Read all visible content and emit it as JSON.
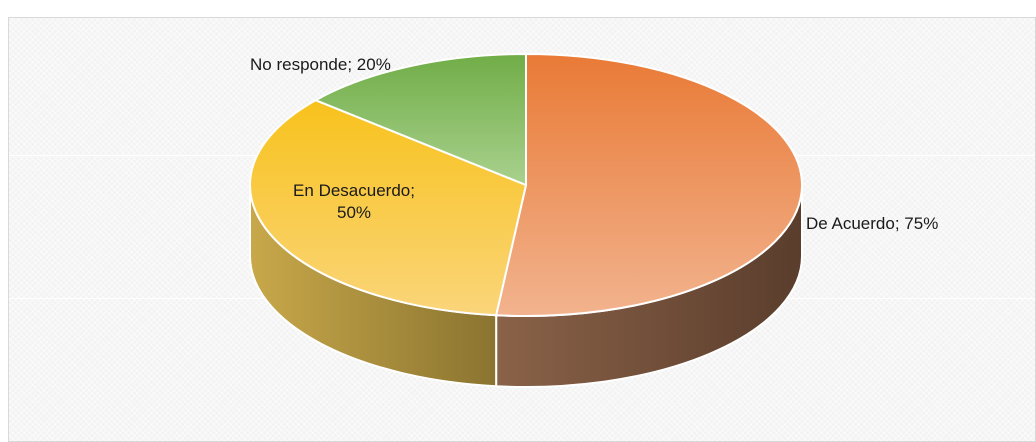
{
  "chart_data": {
    "type": "pie",
    "style": "3d",
    "slices": [
      {
        "label": "De Acuerdo",
        "value": 75,
        "display": "75%",
        "color_light": "#f2b38e",
        "color_dark": "#e97a36",
        "side_dark": "#5a3d2c",
        "side_light": "#8a6248"
      },
      {
        "label": "En Desacuerdo",
        "value": 50,
        "display": "50%",
        "color_light": "#fad57a",
        "color_dark": "#f8c21c",
        "side_dark": "#8a7430",
        "side_light": "#c8a84a"
      },
      {
        "label": "No responde",
        "value": 20,
        "display": "20%",
        "color_light": "#a9d18e",
        "color_dark": "#70ad47",
        "side_dark": "#4f7a33",
        "side_light": "#6e9a4e"
      }
    ],
    "gridlines": true,
    "legend": "none"
  },
  "labels": {
    "de_acuerdo": "De Acuerdo; 75%",
    "en_desacuerdo_line1": "En Desacuerdo;",
    "en_desacuerdo_line2": "50%",
    "no_responde": "No responde; 20%"
  }
}
